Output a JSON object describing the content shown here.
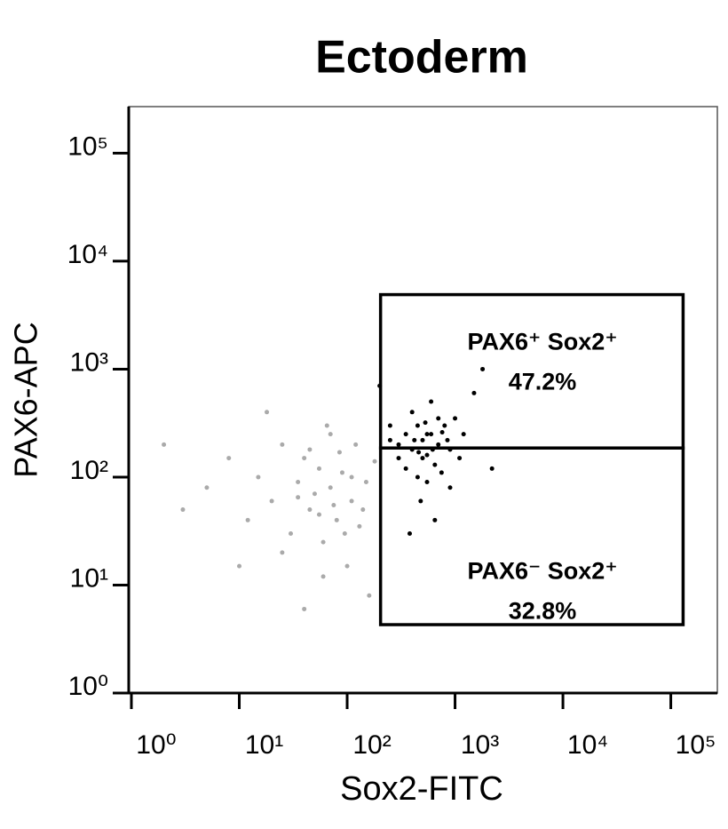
{
  "chart_data": {
    "type": "scatter",
    "title": "Ectoderm",
    "x_label": "Sox2-FITC",
    "y_label": "PAX6-APC",
    "log_x": true,
    "log_y": true,
    "xlim": [
      1,
      270000
    ],
    "ylim": [
      1,
      270000
    ],
    "xticks": [
      {
        "value": 1,
        "label": "10⁰"
      },
      {
        "value": 10,
        "label": "10¹"
      },
      {
        "value": 100,
        "label": "10²"
      },
      {
        "value": 1000,
        "label": "10³"
      },
      {
        "value": 10000,
        "label": "10⁴"
      },
      {
        "value": 100000,
        "label": "10⁵"
      }
    ],
    "yticks": [
      {
        "value": 1,
        "label": "10⁰"
      },
      {
        "value": 10,
        "label": "10¹"
      },
      {
        "value": 100,
        "label": "10²"
      },
      {
        "value": 1000,
        "label": "10³"
      },
      {
        "value": 10000,
        "label": "10⁴"
      },
      {
        "value": 100000,
        "label": "10⁵"
      }
    ],
    "series": [
      {
        "color": "#aaaaaa",
        "x": [
          5,
          8,
          12,
          15,
          20,
          25,
          30,
          35,
          40,
          45,
          50,
          55,
          60,
          65,
          70,
          80,
          90,
          100,
          110,
          120,
          130,
          150,
          160,
          180,
          60,
          40,
          25,
          10,
          3,
          2,
          18,
          70,
          45,
          85,
          95,
          55,
          35,
          75,
          110,
          140
        ],
        "y": [
          80,
          150,
          40,
          100,
          60,
          200,
          30,
          90,
          150,
          50,
          70,
          120,
          25,
          300,
          80,
          40,
          110,
          15,
          60,
          200,
          35,
          90,
          8,
          140,
          12,
          6,
          20,
          15,
          50,
          200,
          400,
          250,
          180,
          170,
          30,
          45,
          65,
          55,
          100,
          50
        ]
      },
      {
        "color": "#000000",
        "x": [
          250,
          300,
          350,
          400,
          450,
          500,
          550,
          600,
          700,
          800,
          900,
          1000,
          350,
          450,
          550,
          650,
          750,
          400,
          600,
          1200,
          300,
          500,
          700,
          850,
          1100,
          250,
          480,
          650,
          900,
          380,
          550,
          620,
          420,
          760,
          530,
          460,
          1500,
          200,
          1800,
          2200
        ],
        "y": [
          300,
          200,
          250,
          180,
          300,
          220,
          160,
          250,
          200,
          300,
          180,
          350,
          120,
          100,
          90,
          130,
          110,
          400,
          500,
          250,
          150,
          150,
          350,
          220,
          150,
          220,
          60,
          40,
          80,
          30,
          250,
          180,
          220,
          260,
          320,
          170,
          600,
          700,
          1000,
          120
        ]
      }
    ],
    "gates": [
      {
        "label": "PAX6⁺ Sox2⁺",
        "xlim": [
          204,
          130000
        ],
        "ylim": [
          186,
          4900
        ],
        "value": 47.2,
        "value_label": "47.2%"
      },
      {
        "label": "PAX6⁻ Sox2⁺",
        "xlim": [
          204,
          130000
        ],
        "ylim": [
          4.3,
          186
        ],
        "value": 32.8,
        "value_label": "32.8%"
      }
    ]
  }
}
